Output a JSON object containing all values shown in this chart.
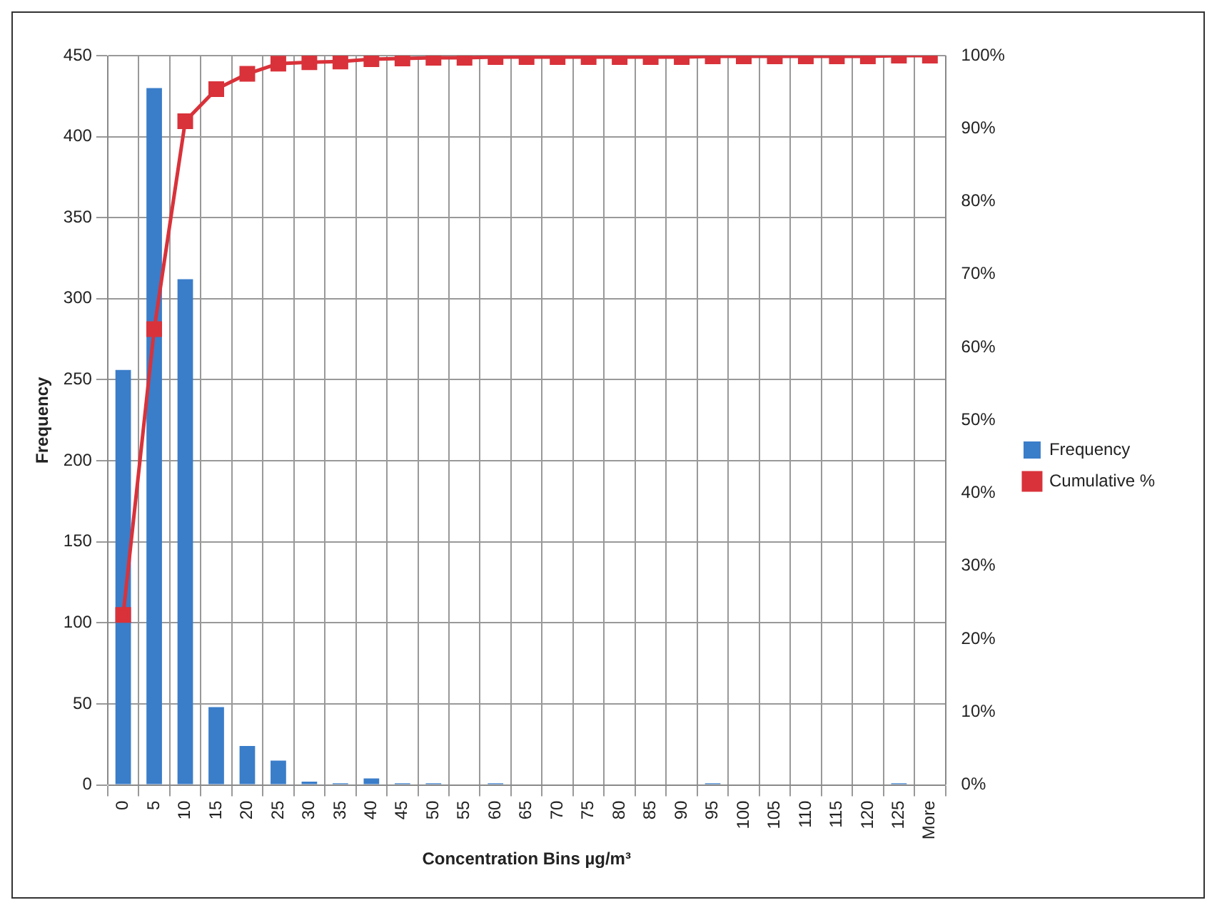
{
  "chart_data": {
    "type": "bar",
    "xlabel": "Concentration Bins µg/m³",
    "ylabel": "Frequency",
    "categories": [
      "0",
      "5",
      "10",
      "15",
      "20",
      "25",
      "30",
      "35",
      "40",
      "45",
      "50",
      "55",
      "60",
      "65",
      "70",
      "75",
      "80",
      "85",
      "90",
      "95",
      "100",
      "105",
      "110",
      "115",
      "120",
      "125",
      "More"
    ],
    "series": [
      {
        "name": "Frequency",
        "color": "#3a7dc9",
        "values": [
          256,
          430,
          312,
          48,
          24,
          15,
          2,
          1,
          4,
          1,
          1,
          0,
          1,
          0,
          0,
          0,
          0,
          0,
          0,
          1,
          0,
          0,
          0,
          0,
          0,
          1,
          0
        ]
      },
      {
        "name": "Cumulative %",
        "type": "line",
        "axis": "y2",
        "color": "#d9323a",
        "marker": "square",
        "values": [
          23.3,
          62.5,
          91.0,
          95.4,
          97.5,
          98.9,
          99.1,
          99.2,
          99.5,
          99.6,
          99.7,
          99.7,
          99.8,
          99.8,
          99.8,
          99.8,
          99.8,
          99.8,
          99.8,
          99.9,
          99.9,
          99.9,
          99.9,
          99.9,
          99.9,
          100,
          100
        ]
      }
    ],
    "ylim": [
      0,
      450
    ],
    "yticks": [
      0,
      50,
      100,
      150,
      200,
      250,
      300,
      350,
      400,
      450
    ],
    "y2lim": [
      0,
      100
    ],
    "y2ticks": [
      {
        "value": 0,
        "label": "0%"
      },
      {
        "value": 10,
        "label": "10%"
      },
      {
        "value": 20,
        "label": "20%"
      },
      {
        "value": 30,
        "label": "30%"
      },
      {
        "value": 40,
        "label": "40%"
      },
      {
        "value": 50,
        "label": "50%"
      },
      {
        "value": 60,
        "label": "60%"
      },
      {
        "value": 70,
        "label": "70%"
      },
      {
        "value": 80,
        "label": "80%"
      },
      {
        "value": 90,
        "label": "90%"
      },
      {
        "value": 100,
        "label": "100%"
      }
    ],
    "grid": true,
    "legend": "right"
  }
}
